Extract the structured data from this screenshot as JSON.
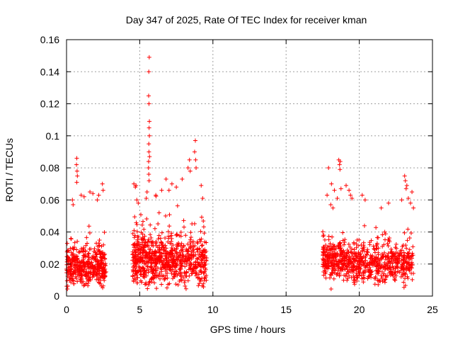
{
  "chart_data": {
    "type": "scatter",
    "title": "Day 347 of 2025, Rate Of TEC Index for receiver kman",
    "xlabel": "GPS time / hours",
    "ylabel": "ROTI / TECUs",
    "xlim": [
      0,
      25
    ],
    "ylim": [
      0,
      0.16
    ],
    "xticks": [
      0,
      5,
      10,
      15,
      20,
      25
    ],
    "xtick_labels": [
      "0",
      "5",
      "10",
      "15",
      "20",
      "25"
    ],
    "yticks": [
      0,
      0.02,
      0.04,
      0.06,
      0.08,
      0.1,
      0.12,
      0.14,
      0.16
    ],
    "ytick_labels": [
      "0",
      "0.02",
      "0.04",
      "0.06",
      "0.08",
      "0.1",
      "0.12",
      "0.14",
      "0.16"
    ],
    "grid": true,
    "marker": "+",
    "color": "#ff0000",
    "clusters": [
      {
        "x_range": [
          0.0,
          2.7
        ],
        "y_base": 0.018,
        "y_spread": 0.012,
        "count": 420
      },
      {
        "x_range": [
          4.5,
          5.9
        ],
        "y_base": 0.022,
        "y_spread": 0.016,
        "count": 260
      },
      {
        "x_range": [
          5.9,
          9.6
        ],
        "y_base": 0.022,
        "y_spread": 0.015,
        "count": 520
      },
      {
        "x_range": [
          17.5,
          18.9
        ],
        "y_base": 0.022,
        "y_spread": 0.012,
        "count": 220
      },
      {
        "x_range": [
          18.9,
          23.7
        ],
        "y_base": 0.02,
        "y_spread": 0.012,
        "count": 560
      }
    ],
    "points": [
      [
        5.65,
        0.149
      ],
      [
        5.62,
        0.14
      ],
      [
        5.61,
        0.125
      ],
      [
        5.63,
        0.12
      ],
      [
        5.66,
        0.109
      ],
      [
        5.64,
        0.105
      ],
      [
        5.66,
        0.1
      ],
      [
        5.62,
        0.095
      ],
      [
        5.63,
        0.09
      ],
      [
        5.67,
        0.087
      ],
      [
        5.61,
        0.084
      ],
      [
        5.6,
        0.08
      ],
      [
        5.62,
        0.076
      ],
      [
        5.64,
        0.072
      ],
      [
        0.7,
        0.086
      ],
      [
        0.68,
        0.082
      ],
      [
        0.72,
        0.078
      ],
      [
        0.74,
        0.075
      ],
      [
        0.7,
        0.071
      ],
      [
        0.4,
        0.06
      ],
      [
        0.45,
        0.057
      ],
      [
        1.0,
        0.063
      ],
      [
        1.2,
        0.062
      ],
      [
        1.6,
        0.065
      ],
      [
        1.8,
        0.064
      ],
      [
        2.2,
        0.063
      ],
      [
        2.45,
        0.07
      ],
      [
        2.5,
        0.066
      ],
      [
        2.1,
        0.06
      ],
      [
        4.6,
        0.07
      ],
      [
        4.7,
        0.068
      ],
      [
        4.75,
        0.069
      ],
      [
        4.8,
        0.06
      ],
      [
        4.9,
        0.058
      ],
      [
        8.8,
        0.097
      ],
      [
        8.75,
        0.09
      ],
      [
        8.82,
        0.085
      ],
      [
        8.85,
        0.08
      ],
      [
        8.4,
        0.085
      ],
      [
        8.3,
        0.08
      ],
      [
        8.45,
        0.078
      ],
      [
        7.9,
        0.073
      ],
      [
        7.5,
        0.068
      ],
      [
        7.2,
        0.07
      ],
      [
        7.0,
        0.066
      ],
      [
        6.8,
        0.073
      ],
      [
        6.5,
        0.066
      ],
      [
        9.2,
        0.069
      ],
      [
        9.3,
        0.061
      ],
      [
        6.1,
        0.063
      ],
      [
        5.5,
        0.065
      ],
      [
        5.45,
        0.061
      ],
      [
        17.8,
        0.063
      ],
      [
        17.9,
        0.08
      ],
      [
        18.1,
        0.07
      ],
      [
        18.3,
        0.066
      ],
      [
        18.5,
        0.061
      ],
      [
        18.6,
        0.085
      ],
      [
        18.65,
        0.082
      ],
      [
        18.7,
        0.084
      ],
      [
        18.68,
        0.079
      ],
      [
        18.75,
        0.067
      ],
      [
        19.1,
        0.069
      ],
      [
        19.3,
        0.066
      ],
      [
        19.4,
        0.063
      ],
      [
        19.5,
        0.061
      ],
      [
        18.05,
        0.057
      ],
      [
        18.2,
        0.055
      ],
      [
        20.2,
        0.063
      ],
      [
        20.4,
        0.06
      ],
      [
        22.0,
        0.058
      ],
      [
        23.1,
        0.075
      ],
      [
        23.15,
        0.072
      ],
      [
        23.2,
        0.067
      ],
      [
        23.25,
        0.069
      ],
      [
        23.6,
        0.065
      ],
      [
        23.35,
        0.061
      ],
      [
        23.5,
        0.058
      ],
      [
        22.9,
        0.06
      ],
      [
        21.5,
        0.055
      ],
      [
        23.7,
        0.055
      ]
    ]
  }
}
